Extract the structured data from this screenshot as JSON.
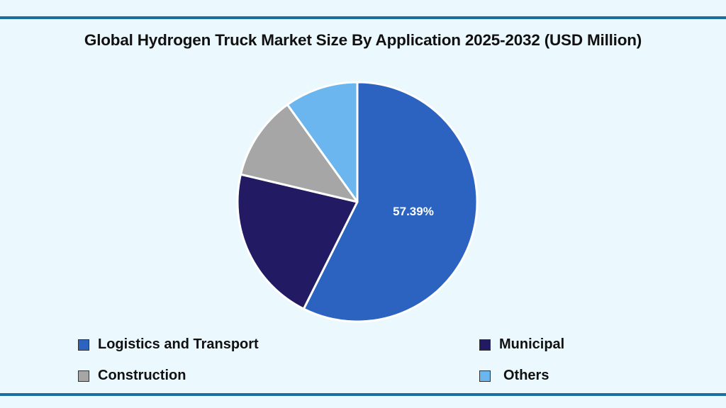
{
  "chart_data": {
    "type": "pie",
    "title": "Global Hydrogen Truck Market Size By Application 2025-2032 (USD Million)",
    "categories": [
      "Logistics and Transport",
      "Municipal",
      "Construction",
      "Others"
    ],
    "values": [
      57.39,
      21.3,
      11.4,
      9.91
    ],
    "colors": [
      "#2d63c0",
      "#221b63",
      "#a6a6a6",
      "#6bb6ef"
    ],
    "data_labels": [
      "57.39%",
      "",
      "",
      ""
    ],
    "start_angle": "12 o'clock",
    "direction": "clockwise",
    "legend_position": "bottom"
  }
}
